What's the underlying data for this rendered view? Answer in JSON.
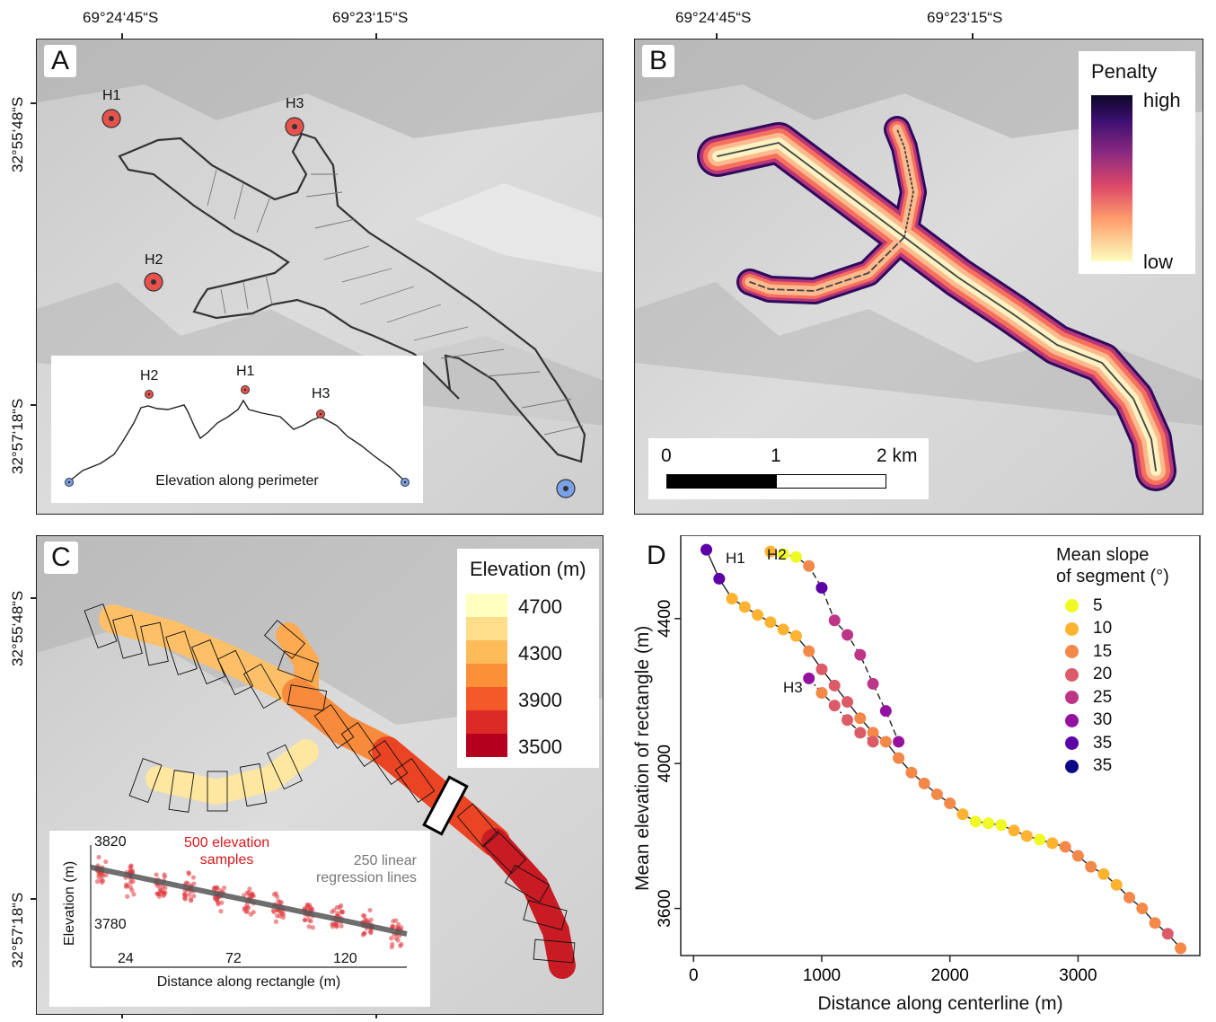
{
  "coords": {
    "lon1": "69°24‘45“S",
    "lon2": "69°23‘15“S",
    "lat1": "32°55‘48“S",
    "lat2": "32°57‘18“S"
  },
  "panelA": {
    "label": "A",
    "headwalls": [
      "H1",
      "H2",
      "H3"
    ],
    "inset": {
      "caption": "Elevation along perimeter",
      "peaks": [
        "H2",
        "H1",
        "H3"
      ]
    }
  },
  "panelB": {
    "label": "B",
    "legend": {
      "title": "Penalty",
      "high": "high",
      "low": "low"
    },
    "scalebar": {
      "labels": [
        "0",
        "1",
        "2 km"
      ]
    }
  },
  "panelC": {
    "label": "C",
    "legend": {
      "title": "Elevation (m)",
      "values": [
        "4700",
        "4300",
        "3900",
        "3500"
      ]
    },
    "inset": {
      "xlabel": "Distance along rectangle (m)",
      "ylabel": "Elevation (m)",
      "yticks": [
        "3820",
        "3780"
      ],
      "xticks": [
        "24",
        "72",
        "120"
      ],
      "annotation_red": [
        "500 elevation",
        "samples"
      ],
      "annotation_grey": [
        "250 linear",
        "regression lines"
      ]
    }
  },
  "panelD": {
    "label": "D",
    "branch_labels": [
      "H1",
      "H2",
      "H3"
    ],
    "legend_title": [
      "Mean slope",
      "of segment (°)"
    ],
    "legend_items": [
      {
        "label": "5",
        "color": "#f0f921"
      },
      {
        "label": "10",
        "color": "#fdb32f"
      },
      {
        "label": "15",
        "color": "#f48849"
      },
      {
        "label": "20",
        "color": "#db5c68"
      },
      {
        "label": "25",
        "color": "#bc3587"
      },
      {
        "label": "30",
        "color": "#9512a1"
      },
      {
        "label": "35",
        "color": "#5c01a6"
      },
      {
        "label": "35",
        "color": "#0d0887"
      }
    ]
  },
  "chart_data": [
    {
      "type": "scatter",
      "panel": "D",
      "xlabel": "Distance along centerline (m)",
      "ylabel": "Mean elevation of rectangle (m)",
      "xlim": [
        -100,
        3950
      ],
      "ylim": [
        3470,
        4630
      ],
      "xticks": [
        0,
        1000,
        2000,
        3000
      ],
      "yticks": [
        3600,
        4000,
        4400
      ],
      "series": [
        {
          "name": "H1",
          "line": "solid",
          "x": [
            100,
            200,
            300,
            400,
            500,
            600,
            700,
            800,
            900,
            1000,
            1100,
            1200,
            1300,
            1400,
            1500,
            1600,
            1700,
            1800,
            1900,
            2000,
            2100,
            2200,
            2300,
            2400,
            2500,
            2600,
            2700,
            2800,
            2900,
            3000,
            3100,
            3200,
            3300,
            3400,
            3500,
            3600,
            3700,
            3800
          ],
          "y": [
            4590,
            4510,
            4455,
            4432,
            4410,
            4390,
            4370,
            4352,
            4310,
            4260,
            4215,
            4170,
            4125,
            4085,
            4060,
            4015,
            3975,
            3945,
            3915,
            3890,
            3860,
            3840,
            3835,
            3830,
            3815,
            3800,
            3790,
            3780,
            3770,
            3745,
            3715,
            3695,
            3665,
            3630,
            3600,
            3560,
            3530,
            3490
          ],
          "slope": [
            35,
            35,
            10,
            10,
            10,
            10,
            10,
            10,
            15,
            20,
            20,
            20,
            15,
            15,
            15,
            15,
            15,
            15,
            15,
            15,
            10,
            5,
            5,
            5,
            10,
            10,
            5,
            10,
            15,
            15,
            15,
            10,
            10,
            15,
            15,
            15,
            20,
            15
          ]
        },
        {
          "name": "H2",
          "line": "dashed",
          "x": [
            600,
            700,
            800,
            900,
            1000,
            1100,
            1200,
            1300,
            1400,
            1500,
            1600
          ],
          "y": [
            4585,
            4578,
            4570,
            4545,
            4485,
            4395,
            4355,
            4300,
            4220,
            4145,
            4060
          ],
          "slope": [
            10,
            5,
            5,
            15,
            35,
            25,
            25,
            25,
            25,
            30,
            30
          ]
        },
        {
          "name": "H3",
          "line": "dashdot",
          "x": [
            900,
            1000,
            1100,
            1200,
            1300,
            1400
          ],
          "y": [
            4235,
            4195,
            4160,
            4120,
            4085,
            4060
          ],
          "slope": [
            30,
            15,
            20,
            20,
            20,
            20
          ]
        }
      ]
    },
    {
      "type": "scatter",
      "panel": "C inset",
      "xlabel": "Distance along rectangle (m)",
      "ylabel": "Elevation (m)",
      "xticks": [
        24,
        72,
        120
      ],
      "yticks": [
        3780,
        3820
      ],
      "ylim": [
        3770,
        3825
      ],
      "sample_columns_x": [
        5,
        19,
        33,
        47,
        61,
        75,
        89,
        103,
        117,
        131,
        145
      ],
      "sample_columns_mean_y": [
        3813,
        3810,
        3807,
        3806,
        3803,
        3800,
        3797,
        3795,
        3792,
        3789,
        3786
      ],
      "regression_line": {
        "x": [
          0,
          150
        ],
        "y": [
          3815,
          3785
        ]
      }
    }
  ]
}
